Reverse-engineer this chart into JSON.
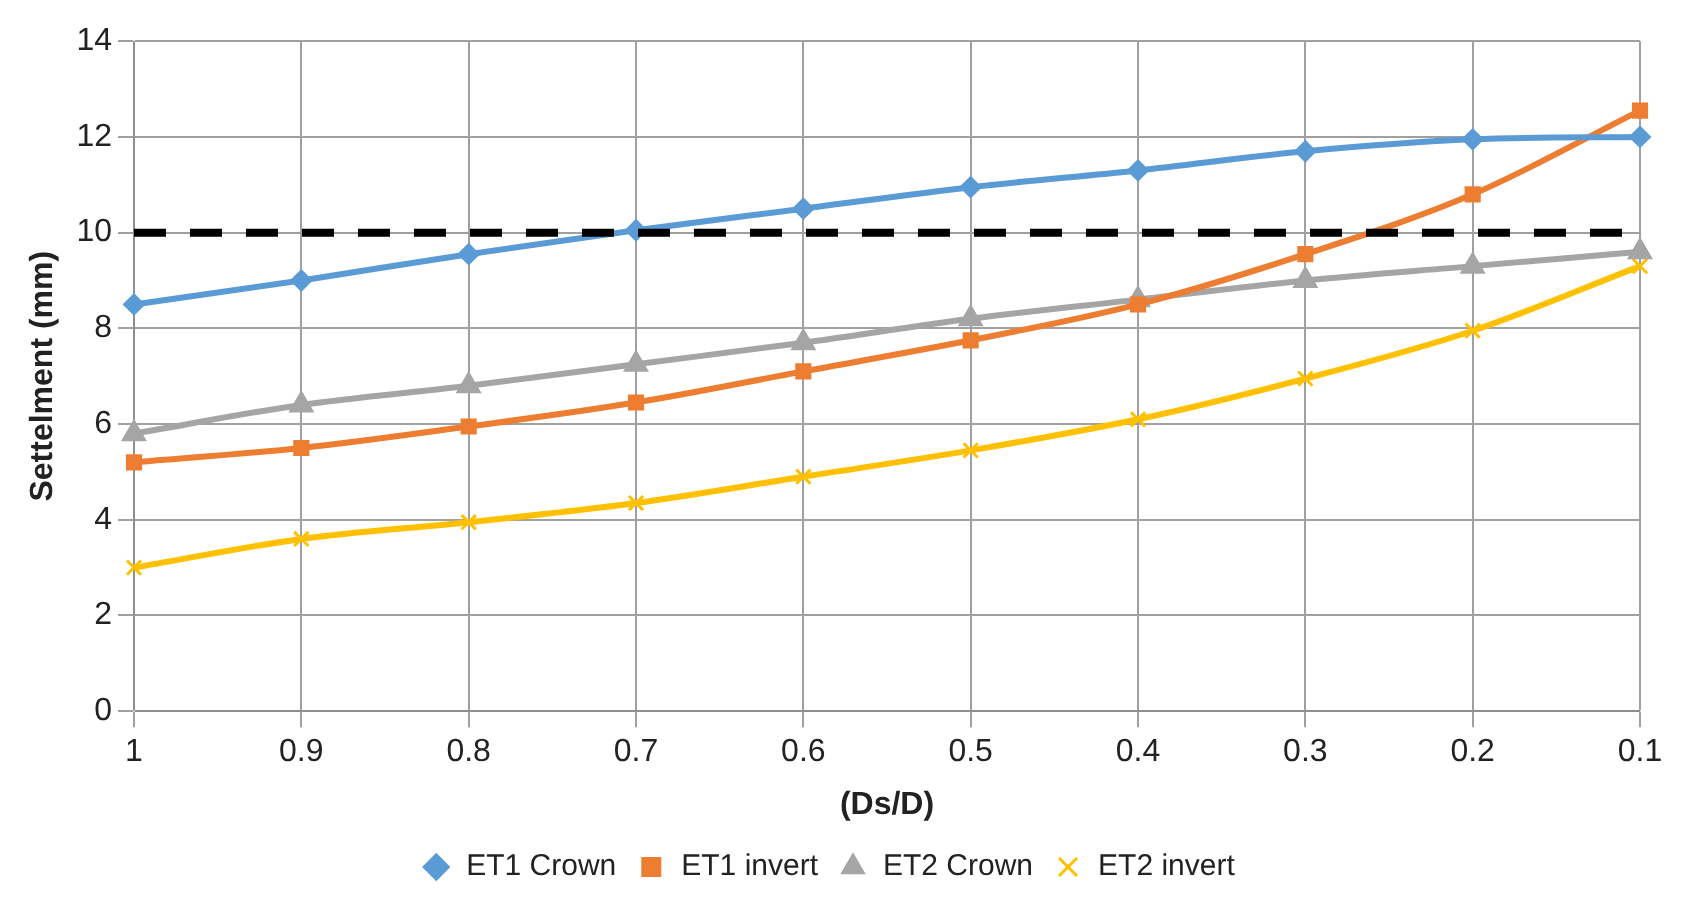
{
  "chart_data": {
    "type": "line",
    "xlabel": "(Ds/D)",
    "ylabel": "Settelment (mm)",
    "categories": [
      "1",
      "0.9",
      "0.8",
      "0.7",
      "0.6",
      "0.5",
      "0.4",
      "0.3",
      "0.2",
      "0.1"
    ],
    "series": [
      {
        "name": "ET1 Crown",
        "color": "#5b9bd5",
        "marker": "diamond",
        "values": [
          8.5,
          9.0,
          9.55,
          10.05,
          10.5,
          10.95,
          11.3,
          11.7,
          11.95,
          12.0
        ]
      },
      {
        "name": "ET1 invert",
        "color": "#ed7d31",
        "marker": "square",
        "values": [
          5.2,
          5.5,
          5.95,
          6.45,
          7.1,
          7.75,
          8.5,
          9.55,
          10.8,
          12.55
        ]
      },
      {
        "name": "ET2 Crown",
        "color": "#a5a5a5",
        "marker": "triangle",
        "values": [
          5.8,
          6.4,
          6.8,
          7.25,
          7.7,
          8.2,
          8.6,
          9.0,
          9.3,
          9.6
        ]
      },
      {
        "name": "ET2 invert",
        "color": "#ffc000",
        "marker": "cross",
        "values": [
          3.0,
          3.6,
          3.95,
          4.35,
          4.9,
          5.45,
          6.1,
          6.95,
          7.95,
          9.3
        ]
      }
    ],
    "ylim": [
      0,
      14
    ],
    "yticks": [
      0,
      2,
      4,
      6,
      8,
      10,
      12,
      14
    ],
    "grid": true,
    "legend": "bottom",
    "line_style": "solid",
    "ref_lines": [
      {
        "axis": "y",
        "value": 10,
        "color": "#000000",
        "line_style": "dashed"
      }
    ]
  }
}
